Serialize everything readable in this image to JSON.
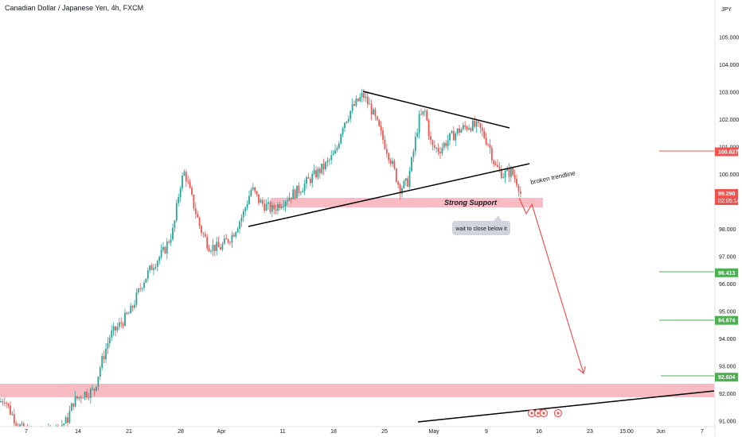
{
  "header": {
    "title": "Canadian Dollar / Japanese Yen, 4h, FXCM"
  },
  "colors": {
    "up": "#26a69a",
    "down": "#ef5350",
    "zone": "#f8bbc4",
    "red_line": "#ef5350",
    "green_line": "#4caf50",
    "trend": "#000000"
  },
  "chart_data": {
    "type": "candlestick",
    "currency": "JPY",
    "y_ticks": [
      "91.000",
      "92.000",
      "93.000",
      "94.000",
      "95.000",
      "96.000",
      "97.000",
      "98.000",
      "99.000",
      "100.000",
      "101.000",
      "102.000",
      "103.000",
      "104.000",
      "105.000"
    ],
    "y_range": [
      90.93,
      105.5
    ],
    "x_ticks": [
      "7",
      "14",
      "21",
      "28",
      "Apr",
      "11",
      "18",
      "25",
      "May",
      "9",
      "16",
      "23",
      "15:00",
      "Jun",
      "7"
    ],
    "price_labels": [
      {
        "text": "100.827",
        "value": 100.827,
        "color": "#ef5350"
      },
      {
        "text": "99.290",
        "sub": "02:05:14",
        "value": 99.29,
        "color": "#ef5350"
      },
      {
        "text": "96.413",
        "value": 96.413,
        "color": "#4caf50"
      },
      {
        "text": "94.674",
        "value": 94.674,
        "color": "#4caf50"
      },
      {
        "text": "92.604",
        "value": 92.604,
        "color": "#4caf50"
      }
    ],
    "annotations": {
      "strong_support": "Strong Support",
      "broken_trendline": "broken trendline",
      "wait_label": "wait to close below it"
    },
    "path_keypoints": [
      [
        0,
        91.7
      ],
      [
        6,
        91.85
      ],
      [
        12,
        91.4
      ],
      [
        20,
        91.0
      ],
      [
        30,
        90.6
      ],
      [
        60,
        90.5
      ],
      [
        84,
        91.0
      ],
      [
        92,
        91.7
      ],
      [
        104,
        92.0
      ],
      [
        118,
        92.1
      ],
      [
        126,
        93.0
      ],
      [
        138,
        94.1
      ],
      [
        150,
        94.5
      ],
      [
        164,
        95.0
      ],
      [
        178,
        96.0
      ],
      [
        192,
        96.7
      ],
      [
        206,
        97.2
      ],
      [
        218,
        98.0
      ],
      [
        226,
        99.6
      ],
      [
        232,
        100.1
      ],
      [
        240,
        99.2
      ],
      [
        252,
        98.0
      ],
      [
        262,
        97.4
      ],
      [
        276,
        97.3
      ],
      [
        292,
        97.8
      ],
      [
        306,
        98.6
      ],
      [
        316,
        99.5
      ],
      [
        326,
        99.0
      ],
      [
        342,
        98.7
      ],
      [
        358,
        99.1
      ],
      [
        374,
        99.4
      ],
      [
        392,
        99.9
      ],
      [
        408,
        100.3
      ],
      [
        422,
        100.8
      ],
      [
        430,
        101.8
      ],
      [
        442,
        102.4
      ],
      [
        456,
        102.9
      ],
      [
        466,
        102.4
      ],
      [
        478,
        101.5
      ],
      [
        490,
        100.6
      ],
      [
        502,
        99.5
      ],
      [
        512,
        99.7
      ],
      [
        518,
        100.6
      ],
      [
        526,
        102.0
      ],
      [
        534,
        102.3
      ],
      [
        542,
        101.0
      ],
      [
        552,
        100.9
      ],
      [
        564,
        101.3
      ],
      [
        576,
        101.6
      ],
      [
        590,
        101.8
      ],
      [
        602,
        101.7
      ],
      [
        614,
        101.1
      ],
      [
        622,
        100.3
      ],
      [
        632,
        100.0
      ],
      [
        642,
        100.1
      ],
      [
        650,
        99.7
      ],
      [
        655,
        99.29
      ]
    ]
  }
}
